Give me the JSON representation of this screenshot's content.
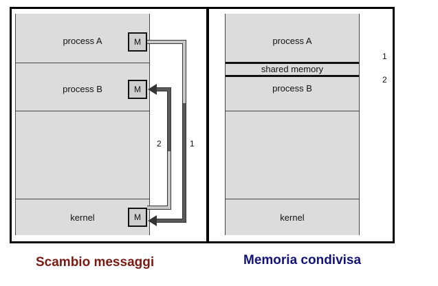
{
  "left": {
    "caption": "Scambio messaggi",
    "process_a": "process A",
    "process_b": "process B",
    "kernel": "kernel",
    "mailbox_label": "M",
    "arrow_1_label": "1",
    "arrow_2_label": "2"
  },
  "right": {
    "caption": "Memoria condivisa",
    "process_a": "process A",
    "shared_memory": "shared memory",
    "process_b": "process B",
    "kernel": "kernel",
    "arrow_1_label": "1",
    "arrow_2_label": "2"
  },
  "colors": {
    "left_caption": "#7a1a12",
    "right_caption": "#12127a",
    "panel": "#dcdcdc",
    "arrow_dark": "#555555",
    "arrow_light": "#bdbdbd"
  }
}
